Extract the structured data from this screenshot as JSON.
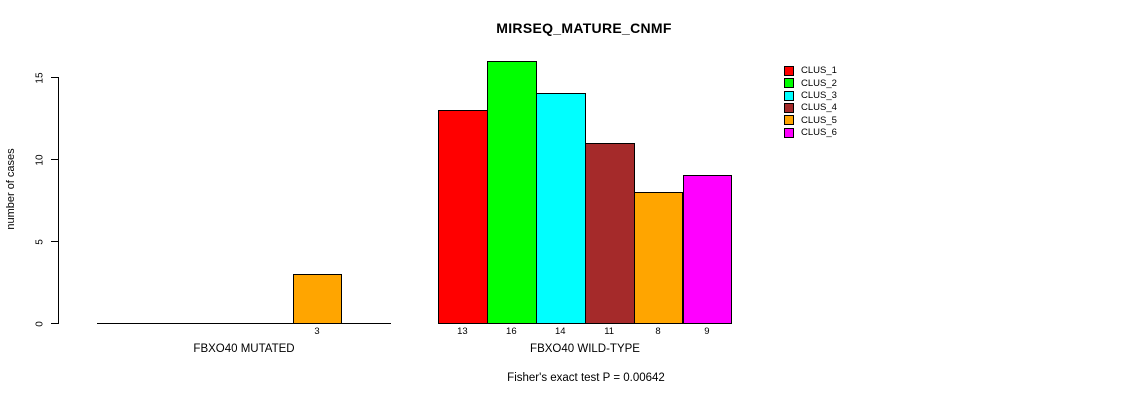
{
  "title": "MIRSEQ_MATURE_CNMF",
  "chart_data": {
    "type": "bar",
    "title": "MIRSEQ_MATURE_CNMF",
    "ylabel": "number of cases",
    "xlabel": "",
    "ylim": [
      0,
      16
    ],
    "yticks": [
      0,
      5,
      10,
      15
    ],
    "grid": false,
    "legend_position": "top-right",
    "series": [
      {
        "name": "CLUS_1",
        "color": "#FF0000",
        "values": [
          0,
          13
        ]
      },
      {
        "name": "CLUS_2",
        "color": "#00FF00",
        "values": [
          0,
          16
        ]
      },
      {
        "name": "CLUS_3",
        "color": "#00FFFF",
        "values": [
          0,
          14
        ]
      },
      {
        "name": "CLUS_4",
        "color": "#A52A2A",
        "values": [
          0,
          11
        ]
      },
      {
        "name": "CLUS_5",
        "color": "#FFA500",
        "values": [
          3,
          8
        ]
      },
      {
        "name": "CLUS_6",
        "color": "#FF00FF",
        "values": [
          0,
          9
        ]
      }
    ],
    "groups": [
      {
        "label": "FBXO40 MUTATED",
        "values": [
          0,
          0,
          0,
          0,
          3,
          0
        ],
        "bar_labels": [
          "",
          "",
          "",
          "",
          "3",
          ""
        ]
      },
      {
        "label": "FBXO40 WILD-TYPE",
        "values": [
          13,
          16,
          14,
          11,
          8,
          9
        ],
        "bar_labels": [
          "13",
          "16",
          "14",
          "11",
          "8",
          "9"
        ]
      }
    ],
    "legend": [
      {
        "label": "CLUS_1",
        "color": "#FF0000"
      },
      {
        "label": "CLUS_2",
        "color": "#00FF00"
      },
      {
        "label": "CLUS_3",
        "color": "#00FFFF"
      },
      {
        "label": "CLUS_4",
        "color": "#A52A2A"
      },
      {
        "label": "CLUS_5",
        "color": "#FFA500"
      },
      {
        "label": "CLUS_6",
        "color": "#FF00FF"
      }
    ],
    "footnote": "Fisher's exact test P = 0.00642",
    "axis_color": "#000000",
    "background_color": "#FFFFFF"
  }
}
